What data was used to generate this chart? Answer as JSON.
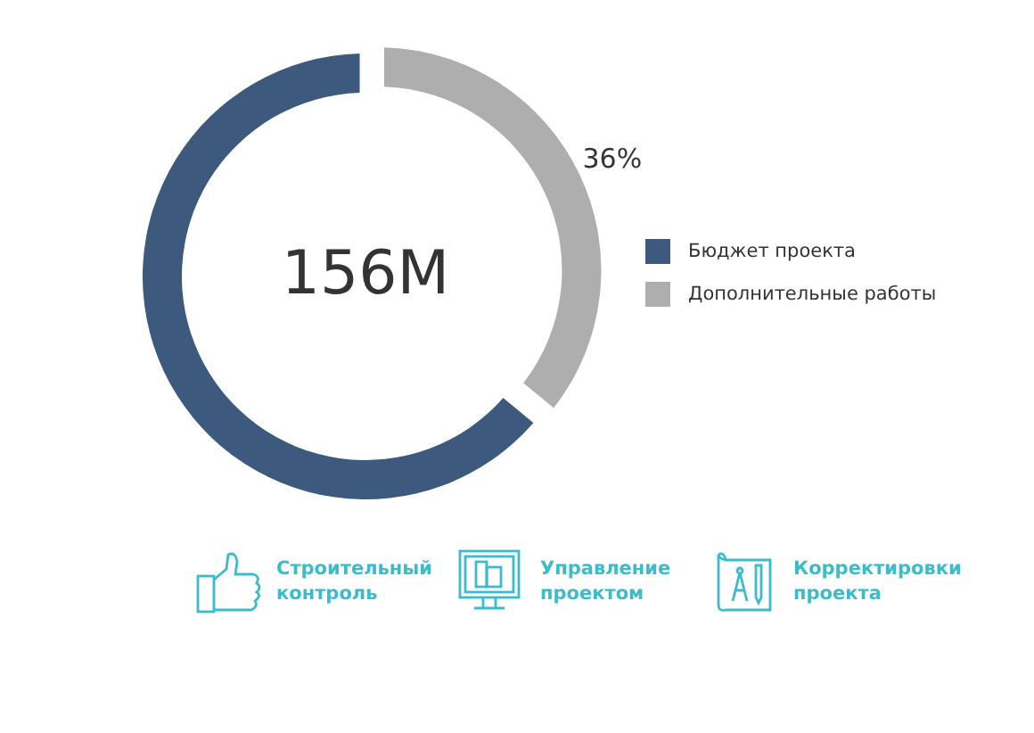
{
  "chart_data": {
    "type": "donut",
    "categories": [
      "Бюджет проекта",
      "Дополнительные работы"
    ],
    "values": [
      64,
      36
    ],
    "colors": [
      "#3d5a7e",
      "#aeaeae"
    ],
    "value_labels": [
      null,
      "36%"
    ],
    "legend": "right",
    "annotations": [
      "156M",
      "Строительный контроль",
      "Управление проектом",
      "Корректировки проекта"
    ]
  }
}
